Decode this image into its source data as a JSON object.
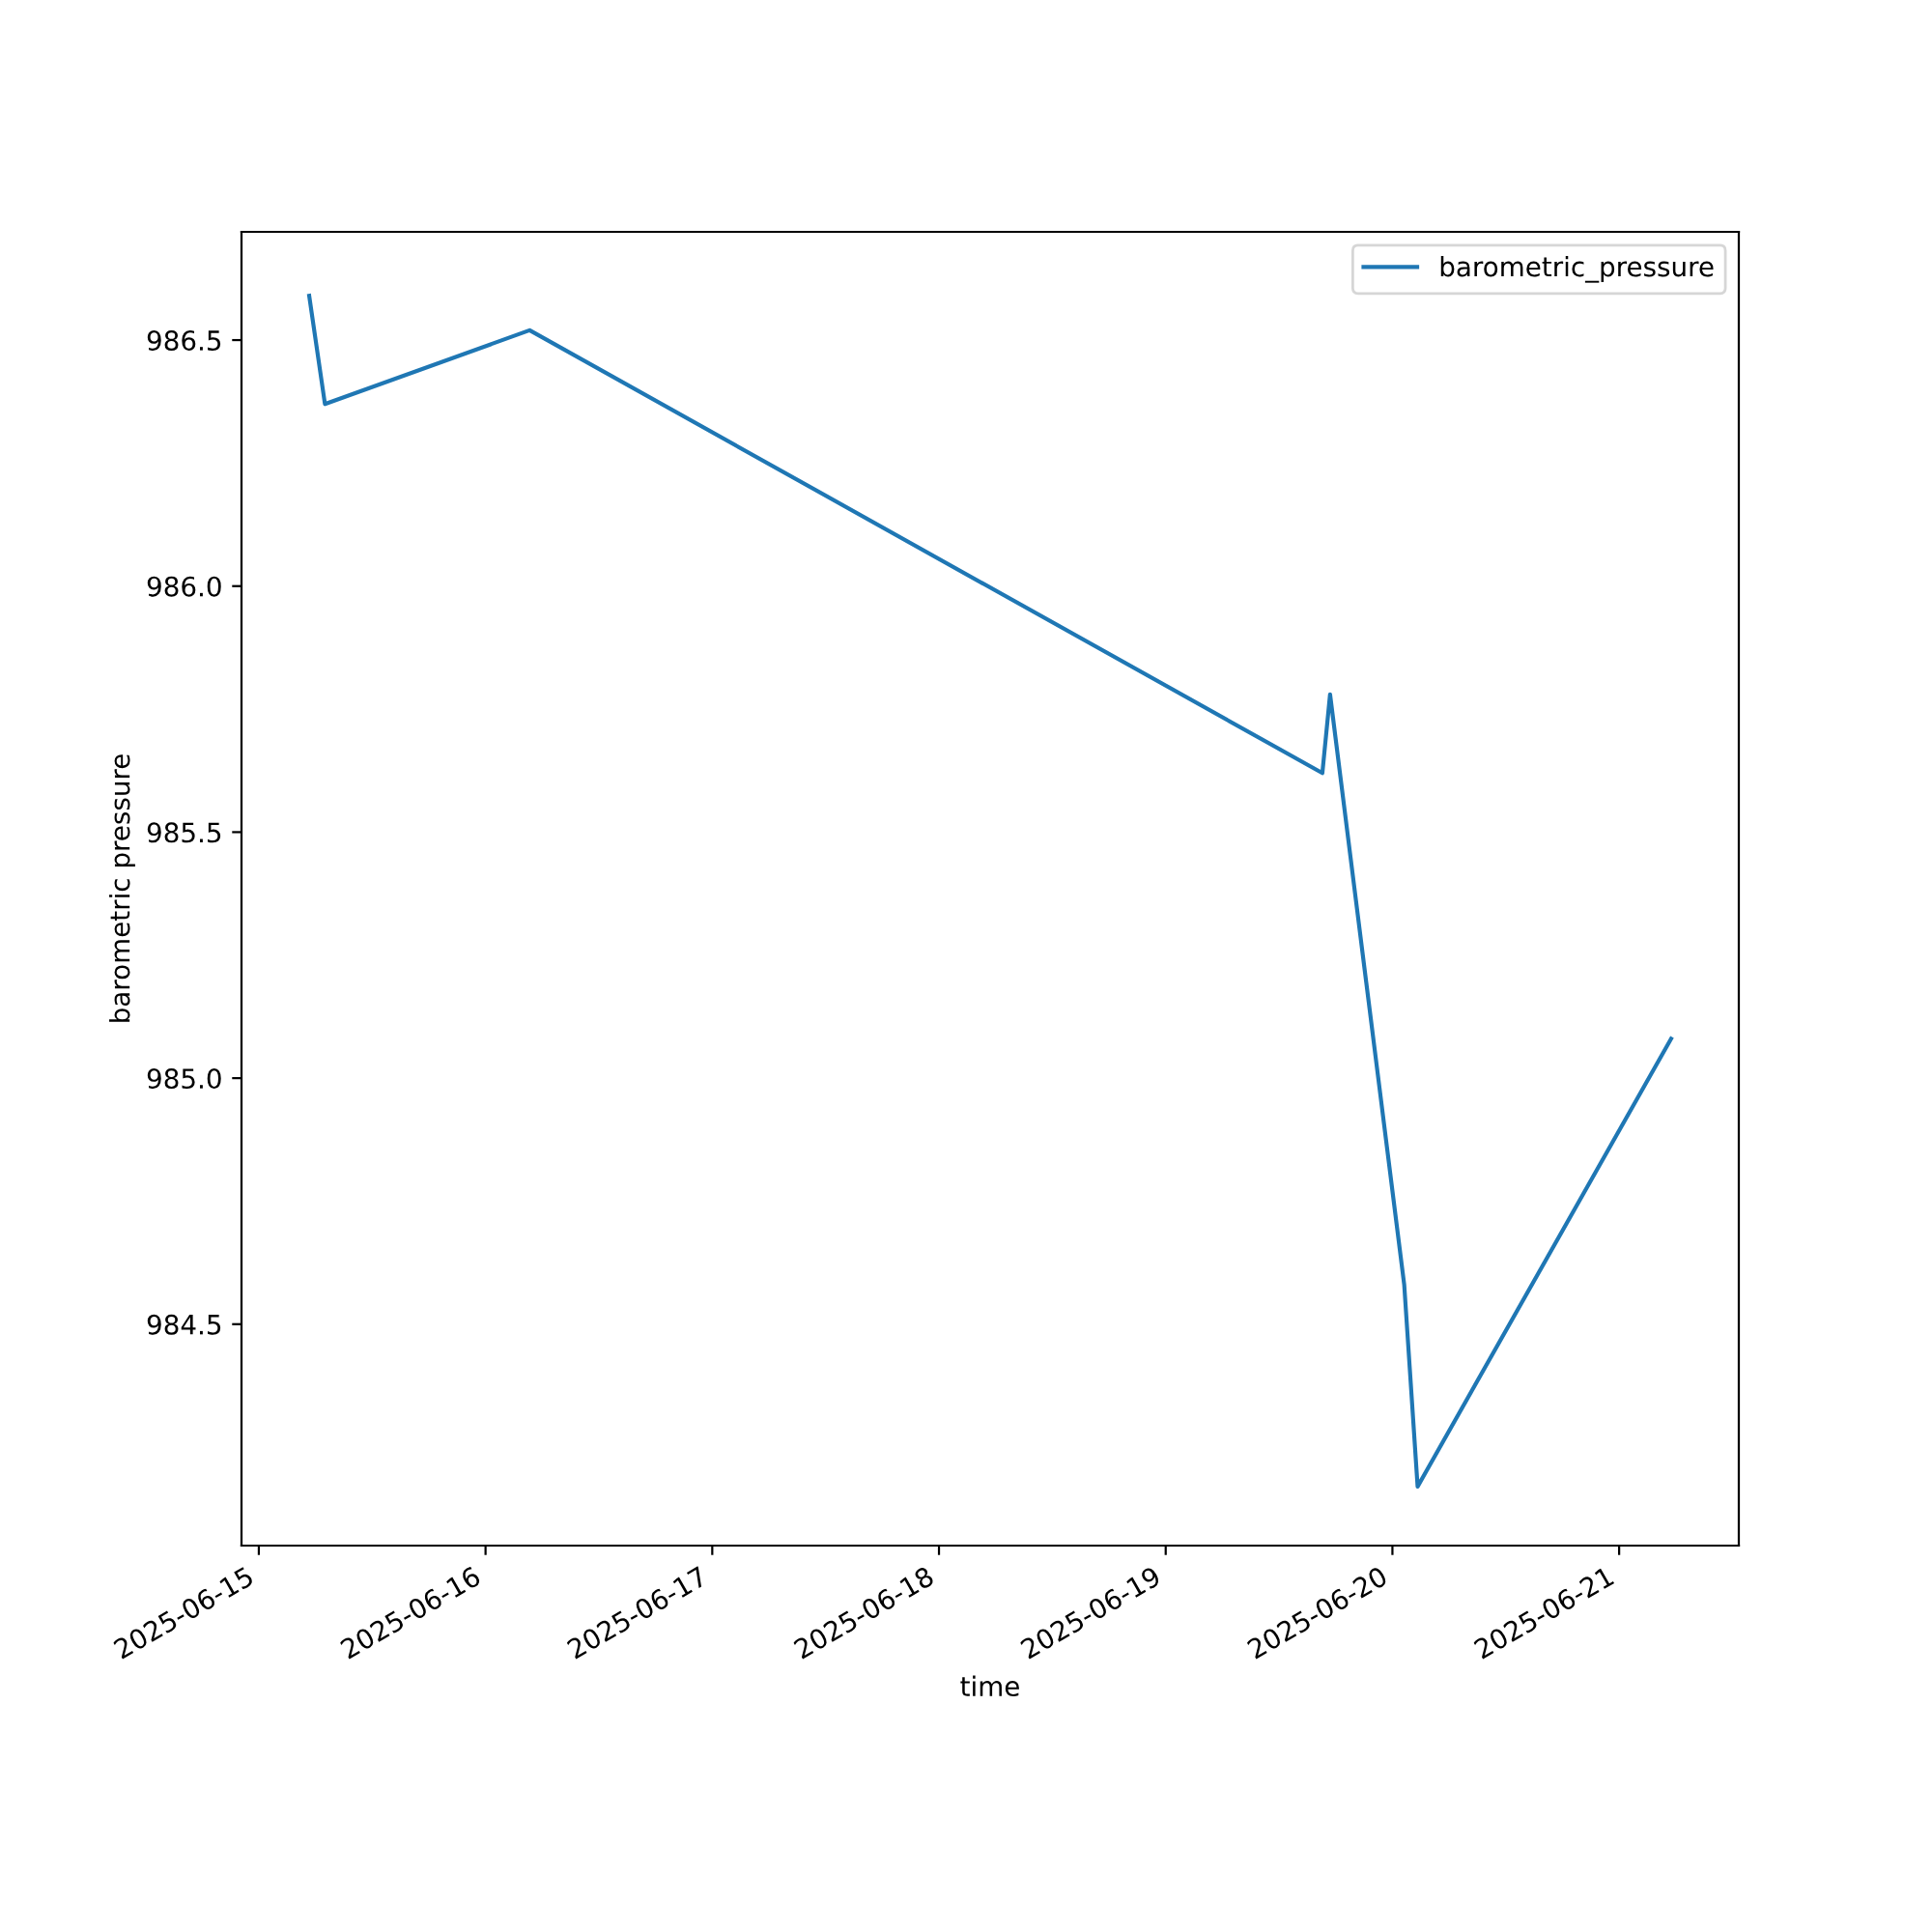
{
  "chart_data": {
    "type": "line",
    "xlabel": "time",
    "ylabel": "barometric pressure",
    "x": [
      "2025-06-15T05:20",
      "2025-06-15T07:00",
      "2025-06-16T04:40",
      "2025-06-19T16:35",
      "2025-06-19T17:24",
      "2025-06-20T01:15",
      "2025-06-20T02:40",
      "2025-06-21T05:30"
    ],
    "series": [
      {
        "name": "barometric_pressure",
        "color": "#1f77b4",
        "values": [
          986.59,
          986.37,
          986.52,
          985.62,
          985.78,
          984.58,
          984.17,
          985.08
        ]
      }
    ],
    "xlim": [
      "2025-06-14T22:10",
      "2025-06-21T12:40"
    ],
    "ylim": [
      984.05,
      986.72
    ],
    "xticks": [
      "2025-06-15",
      "2025-06-16",
      "2025-06-17",
      "2025-06-18",
      "2025-06-19",
      "2025-06-20",
      "2025-06-21"
    ],
    "yticks": [
      984.5,
      {
        "value": 985,
        "label": "985.0"
      },
      985.5,
      {
        "value": 986,
        "label": "986.0"
      },
      986.5
    ],
    "legend": "top right",
    "grid": false,
    "marker": "none",
    "line_style": "solid"
  }
}
